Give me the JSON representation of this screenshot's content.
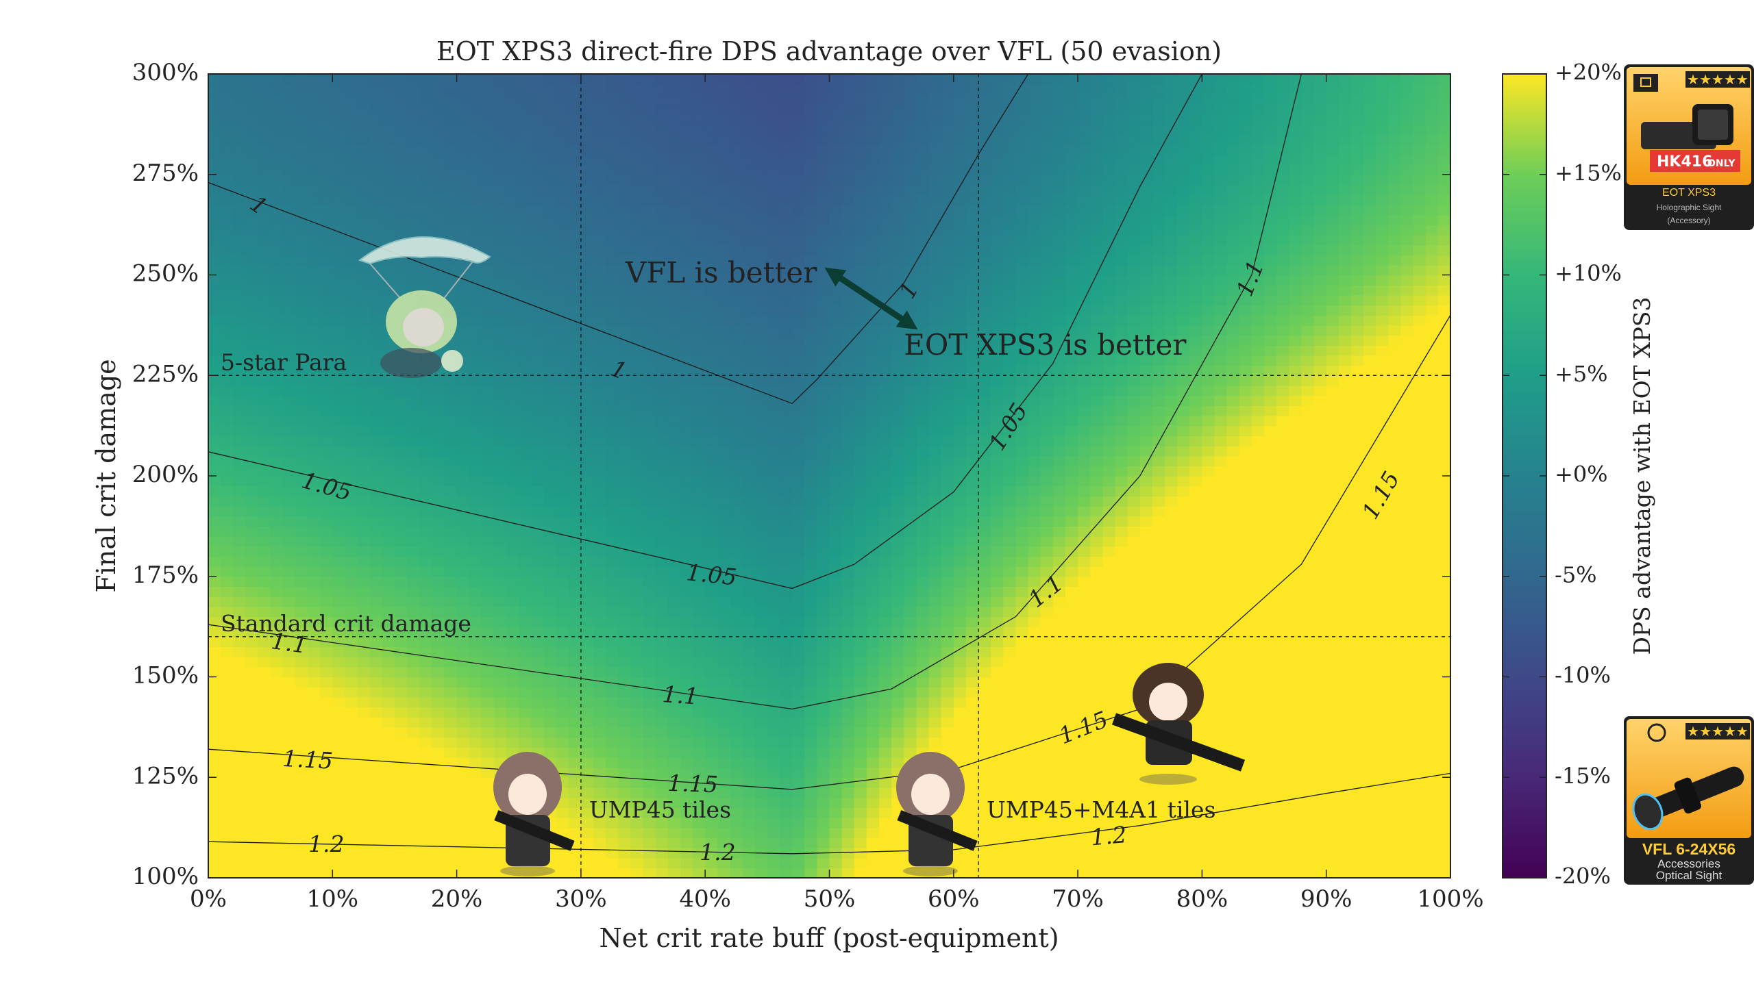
{
  "chart_data": {
    "type": "heatmap",
    "title": "EOT XPS3 direct-fire DPS advantage over VFL (50 evasion)",
    "xlabel": "Net crit rate buff (post-equipment)",
    "ylabel": "Final crit damage",
    "xlim": [
      0,
      100
    ],
    "ylim": [
      100,
      300
    ],
    "x_ticks": [
      "0%",
      "10%",
      "20%",
      "30%",
      "40%",
      "50%",
      "60%",
      "70%",
      "80%",
      "90%",
      "100%"
    ],
    "y_ticks": [
      "100%",
      "125%",
      "150%",
      "175%",
      "200%",
      "225%",
      "250%",
      "275%",
      "300%"
    ],
    "colorbar": {
      "label": "DPS advantage with EOT XPS3",
      "range": [
        -20,
        20
      ],
      "ticks": [
        "+20%",
        "+15%",
        "+10%",
        "+5%",
        "+0%",
        "-5%",
        "-10%",
        "-15%",
        "-20%"
      ],
      "colormap": "viridis"
    },
    "ridge_x": 47,
    "contours": [
      {
        "level": 1,
        "label": "1",
        "points": [
          [
            0,
            273
          ],
          [
            47,
            218
          ],
          [
            49,
            224
          ],
          [
            56,
            248
          ],
          [
            62,
            280
          ],
          [
            66,
            300
          ]
        ]
      },
      {
        "level": 1.05,
        "label": "1.05",
        "points": [
          [
            0,
            206
          ],
          [
            47,
            172
          ],
          [
            52,
            178
          ],
          [
            60,
            196
          ],
          [
            68,
            228
          ],
          [
            75,
            272
          ],
          [
            80,
            300
          ]
        ]
      },
      {
        "level": 1.1,
        "label": "1.1",
        "points": [
          [
            0,
            163
          ],
          [
            47,
            142
          ],
          [
            55,
            147
          ],
          [
            65,
            165
          ],
          [
            75,
            200
          ],
          [
            84,
            250
          ],
          [
            88,
            300
          ]
        ]
      },
      {
        "level": 1.15,
        "label": "1.15",
        "points": [
          [
            0,
            132
          ],
          [
            47,
            122
          ],
          [
            60,
            127
          ],
          [
            75,
            142
          ],
          [
            88,
            178
          ],
          [
            100,
            240
          ]
        ]
      },
      {
        "level": 1.2,
        "label": "1.2",
        "points": [
          [
            0,
            109
          ],
          [
            47,
            106
          ],
          [
            60,
            107
          ],
          [
            75,
            113
          ],
          [
            90,
            121
          ],
          [
            100,
            126
          ]
        ]
      }
    ],
    "contour_labels": [
      {
        "text": "1",
        "x": 4,
        "y": 267,
        "angle": 35
      },
      {
        "text": "1",
        "x": 33,
        "y": 226,
        "angle": 22
      },
      {
        "text": "1",
        "x": 56.5,
        "y": 246,
        "angle": -60
      },
      {
        "text": "1.05",
        "x": 9.5,
        "y": 197,
        "angle": 16
      },
      {
        "text": "1.05",
        "x": 40.5,
        "y": 175,
        "angle": 6
      },
      {
        "text": "1.05",
        "x": 64.5,
        "y": 212,
        "angle": -58
      },
      {
        "text": "1.1",
        "x": 6.5,
        "y": 158,
        "angle": 8
      },
      {
        "text": "1.1",
        "x": 38,
        "y": 145,
        "angle": 4
      },
      {
        "text": "1.1",
        "x": 67.5,
        "y": 171,
        "angle": -38
      },
      {
        "text": "1.1",
        "x": 84,
        "y": 249,
        "angle": -68
      },
      {
        "text": "1.15",
        "x": 8,
        "y": 129,
        "angle": 3
      },
      {
        "text": "1.15",
        "x": 39,
        "y": 123,
        "angle": 2
      },
      {
        "text": "1.15",
        "x": 70.5,
        "y": 137,
        "angle": -22
      },
      {
        "text": "1.15",
        "x": 94.5,
        "y": 195,
        "angle": -60
      },
      {
        "text": "1.2",
        "x": 9.5,
        "y": 108,
        "angle": 0
      },
      {
        "text": "1.2",
        "x": 41,
        "y": 106,
        "angle": 0
      },
      {
        "text": "1.2",
        "x": 72.5,
        "y": 110,
        "angle": -5
      }
    ],
    "reference_lines": [
      {
        "axis": "y",
        "value": 225,
        "label": "5-star Para"
      },
      {
        "axis": "y",
        "value": 160,
        "label": "Standard crit damage"
      },
      {
        "axis": "x",
        "value": 30,
        "label": "UMP45 tiles"
      },
      {
        "axis": "x",
        "value": 62,
        "label": "UMP45+M4A1 tiles"
      }
    ],
    "annotations": [
      {
        "text": "VFL is better",
        "x": 49,
        "y": 250
      },
      {
        "text": "EOT XPS3 is better",
        "x": 56,
        "y": 232
      }
    ],
    "legend": "none",
    "grid": false
  },
  "cards": {
    "eot": {
      "name": "EOT XPS3",
      "subtitle": "Holographic Sight",
      "category": "(Accessory)",
      "stars": "★★★★★",
      "badge": "HK416",
      "badge_suffix": "ONLY"
    },
    "vfl": {
      "name": "VFL 6-24X56",
      "subtitle": "Accessories",
      "category": "Optical Sight",
      "stars": "★★★★★"
    }
  },
  "colors": {
    "card_top": "#f5a623",
    "card_bottom": "#222222",
    "card_accent": "#ffcc33",
    "badge_red": "#e53935",
    "arrow": "#0b3d33"
  }
}
